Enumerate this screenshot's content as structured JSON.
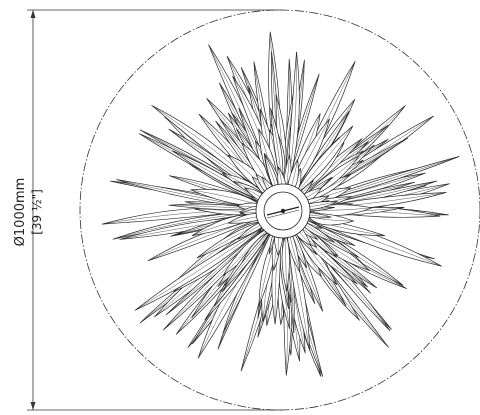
{
  "dimension": {
    "metric": "Ø1000mm",
    "imperial": "[39 ½\"]"
  }
}
